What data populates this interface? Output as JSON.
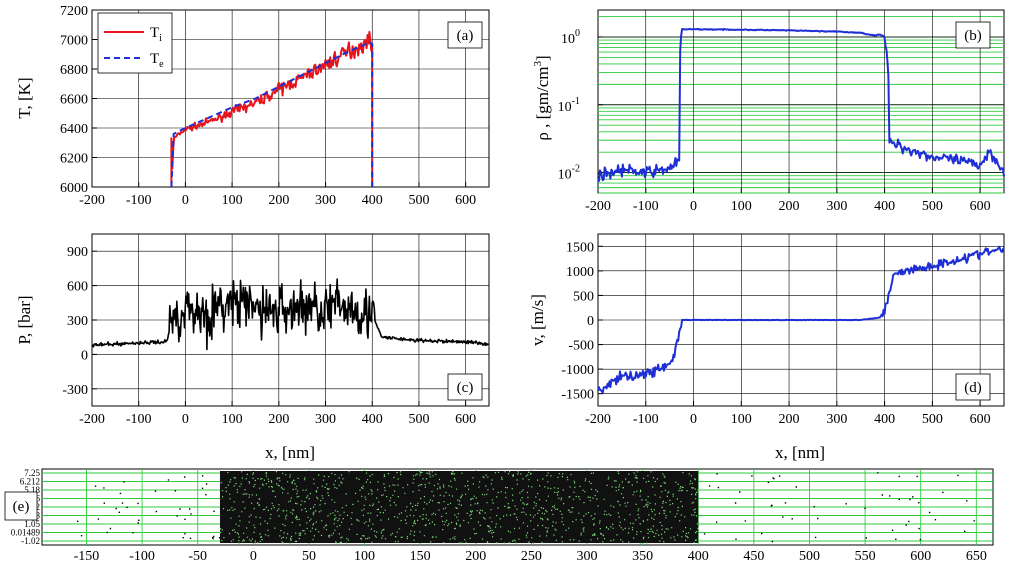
{
  "panels": {
    "a": {
      "label": "(a)",
      "ylabel": "T, [K]",
      "xlim": [
        -200,
        650
      ],
      "ylim": [
        6000,
        7200
      ],
      "xticks": [
        -200,
        -100,
        0,
        100,
        200,
        300,
        400,
        500,
        600
      ],
      "yticks": [
        6000,
        6200,
        6400,
        6600,
        6800,
        7000,
        7200
      ],
      "legend": [
        {
          "main": "T",
          "sub": "i",
          "color": "#e8141c",
          "dash": "none"
        },
        {
          "main": "T",
          "sub": "e",
          "color": "#1f2fd6",
          "dash": "6,4"
        }
      ]
    },
    "b": {
      "label": "(b)",
      "ylabel_main": "ρ , [gm/cm",
      "ylabel_sup": "3",
      "ylabel_end": "]",
      "xlim": [
        -200,
        650
      ],
      "ylog": [
        0.005,
        2.5
      ],
      "xticks": [
        -200,
        -100,
        0,
        100,
        200,
        300,
        400,
        500,
        600
      ],
      "yticks": [
        {
          "mant": "10",
          "exp": "0",
          "v": 1
        },
        {
          "mant": "10",
          "exp": "-1",
          "v": 0.1
        },
        {
          "mant": "10",
          "exp": "-2",
          "v": 0.01
        }
      ],
      "color": "#1f2fd6"
    },
    "c": {
      "label": "(c)",
      "ylabel": "P, [bar]",
      "xlabel": "x, [nm]",
      "xlim": [
        -200,
        650
      ],
      "ylim": [
        -450,
        1050
      ],
      "xticks": [
        -200,
        -100,
        0,
        100,
        200,
        300,
        400,
        500,
        600
      ],
      "yticks": [
        -300,
        0,
        300,
        600,
        900
      ],
      "color": "#000000"
    },
    "d": {
      "label": "(d)",
      "ylabel": "v, [m/s]",
      "xlabel": "x, [nm]",
      "xlim": [
        -200,
        650
      ],
      "ylim": [
        -1750,
        1750
      ],
      "xticks": [
        -200,
        -100,
        0,
        100,
        200,
        300,
        400,
        500,
        600
      ],
      "yticks": [
        -1500,
        -1000,
        -500,
        0,
        500,
        1000,
        1500
      ],
      "color": "#1f2fd6"
    },
    "e": {
      "label": "(e)",
      "xlim": [
        -190,
        665
      ],
      "xticks": [
        -150,
        -100,
        -50,
        0,
        50,
        100,
        150,
        200,
        250,
        300,
        350,
        400,
        450,
        500,
        550,
        600,
        650
      ],
      "yticks": [
        "7.25",
        "6.212",
        "5.18",
        "4.16",
        "3.12",
        "2.08",
        "1.05",
        "0.01489",
        "-1.02"
      ],
      "slab": [
        -30,
        400
      ]
    }
  },
  "chart_data": [
    {
      "type": "line",
      "panel": "a",
      "series": [
        {
          "name": "T_i",
          "x": [
            -30,
            -25,
            0,
            50,
            100,
            150,
            200,
            250,
            300,
            350,
            395,
            400,
            400
          ],
          "y": [
            6000,
            6330,
            6390,
            6440,
            6510,
            6570,
            6660,
            6740,
            6830,
            6920,
            6990,
            6960,
            6000
          ]
        },
        {
          "name": "T_e",
          "x": [
            -30,
            -25,
            0,
            50,
            100,
            150,
            200,
            250,
            300,
            350,
            395,
            400,
            400
          ],
          "y": [
            6000,
            6360,
            6400,
            6470,
            6540,
            6600,
            6680,
            6760,
            6840,
            6920,
            6980,
            6970,
            6000
          ]
        }
      ]
    },
    {
      "type": "line",
      "panel": "b",
      "yscale": "log",
      "x": [
        -200,
        -150,
        -100,
        -60,
        -40,
        -30,
        -25,
        0,
        100,
        200,
        300,
        350,
        380,
        390,
        400,
        410,
        450,
        500,
        550,
        600,
        620,
        650
      ],
      "y": [
        0.009,
        0.011,
        0.01,
        0.011,
        0.013,
        0.015,
        1.3,
        1.3,
        1.28,
        1.25,
        1.2,
        1.15,
        1.05,
        1.1,
        1.0,
        0.028,
        0.022,
        0.017,
        0.015,
        0.013,
        0.02,
        0.01
      ]
    },
    {
      "type": "line",
      "panel": "c",
      "x": [
        -200,
        -100,
        -40,
        -30,
        0,
        50,
        100,
        150,
        200,
        250,
        300,
        350,
        400,
        420,
        500,
        600,
        650
      ],
      "y": [
        80,
        100,
        110,
        300,
        400,
        350,
        450,
        400,
        380,
        420,
        400,
        420,
        350,
        150,
        120,
        110,
        90
      ]
    },
    {
      "type": "line",
      "panel": "d",
      "x": [
        -200,
        -150,
        -100,
        -50,
        -40,
        -30,
        -25,
        0,
        100,
        200,
        300,
        350,
        390,
        400,
        420,
        500,
        600,
        650
      ],
      "y": [
        -1450,
        -1150,
        -1100,
        -900,
        -700,
        -300,
        0,
        0,
        0,
        0,
        0,
        0,
        50,
        200,
        950,
        1100,
        1350,
        1450
      ]
    },
    {
      "type": "scatter",
      "panel": "e",
      "x_range": [
        -30,
        400
      ],
      "y_ticks": [
        "7.25",
        "6.212",
        "5.18",
        "4.16",
        "3.12",
        "2.08",
        "1.05",
        "0.01489",
        "-1.02"
      ]
    }
  ]
}
